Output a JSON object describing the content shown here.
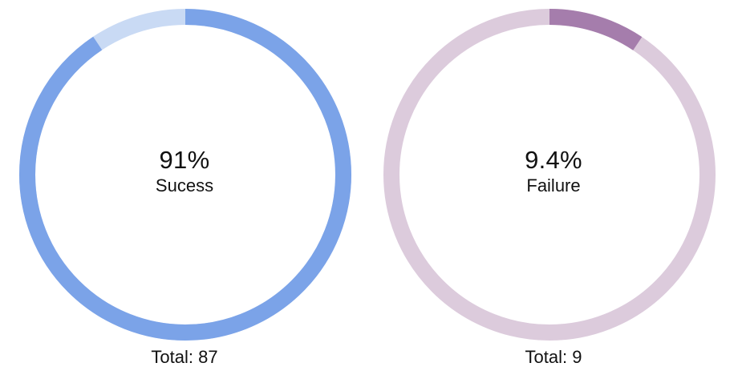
{
  "chart_data": [
    {
      "type": "pie",
      "style": "donut",
      "center_value": "91%",
      "center_label": "Sucess",
      "footer": "Total: 87",
      "fraction": 0.906,
      "colors": {
        "filled": "#7ba3e8",
        "track": "#c9daf4"
      }
    },
    {
      "type": "pie",
      "style": "donut",
      "center_value": "9.4%",
      "center_label": "Failure",
      "footer": "Total: 9",
      "fraction": 0.094,
      "colors": {
        "filled": "#a57dac",
        "track": "#dccbdc"
      }
    }
  ]
}
